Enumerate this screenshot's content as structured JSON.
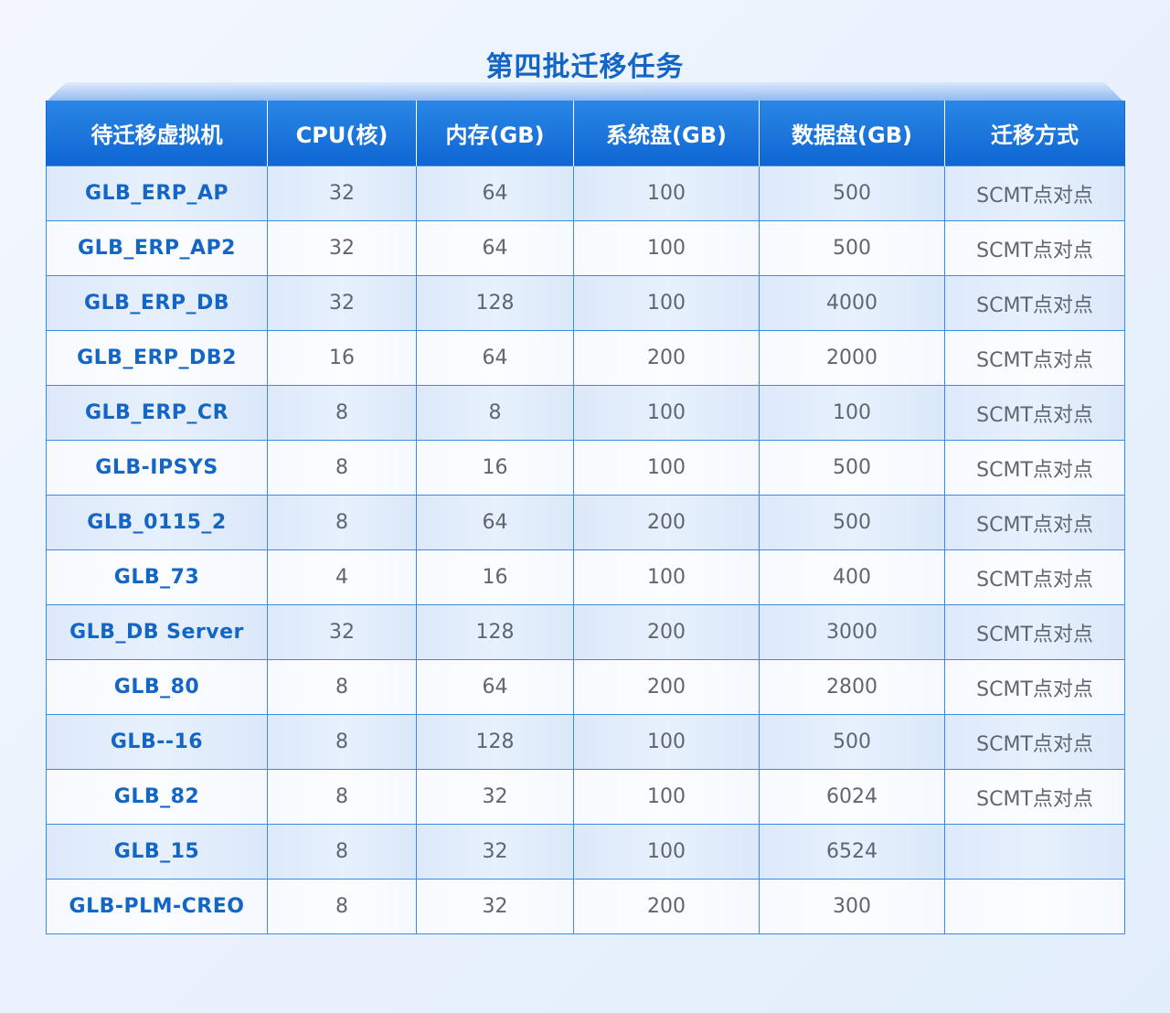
{
  "title": "第四批迁移任务",
  "table": {
    "headers": [
      "待迁移虚拟机",
      "CPU(核)",
      "内存(GB)",
      "系统盘(GB)",
      "数据盘(GB)",
      "迁移方式"
    ],
    "rows": [
      [
        "GLB_ERP_AP",
        "32",
        "64",
        "100",
        "500",
        "SCMT点对点"
      ],
      [
        "GLB_ERP_AP2",
        "32",
        "64",
        "100",
        "500",
        "SCMT点对点"
      ],
      [
        "GLB_ERP_DB",
        "32",
        "128",
        "100",
        "4000",
        "SCMT点对点"
      ],
      [
        "GLB_ERP_DB2",
        "16",
        "64",
        "200",
        "2000",
        "SCMT点对点"
      ],
      [
        "GLB_ERP_CR",
        "8",
        "8",
        "100",
        "100",
        "SCMT点对点"
      ],
      [
        "GLB-IPSYS",
        "8",
        "16",
        "100",
        "500",
        "SCMT点对点"
      ],
      [
        "GLB_0115_2",
        "8",
        "64",
        "200",
        "500",
        "SCMT点对点"
      ],
      [
        "GLB_73",
        "4",
        "16",
        "100",
        "400",
        "SCMT点对点"
      ],
      [
        "GLB_DB Server",
        "32",
        "128",
        "200",
        "3000",
        "SCMT点对点"
      ],
      [
        "GLB_80",
        "8",
        "64",
        "200",
        "2800",
        "SCMT点对点"
      ],
      [
        "GLB--16",
        "8",
        "128",
        "100",
        "500",
        "SCMT点对点"
      ],
      [
        "GLB_82",
        "8",
        "32",
        "100",
        "6024",
        "SCMT点对点"
      ],
      [
        "GLB_15",
        "8",
        "32",
        "100",
        "6524",
        ""
      ],
      [
        "GLB-PLM-CREO",
        "8",
        "32",
        "200",
        "300",
        ""
      ]
    ]
  }
}
